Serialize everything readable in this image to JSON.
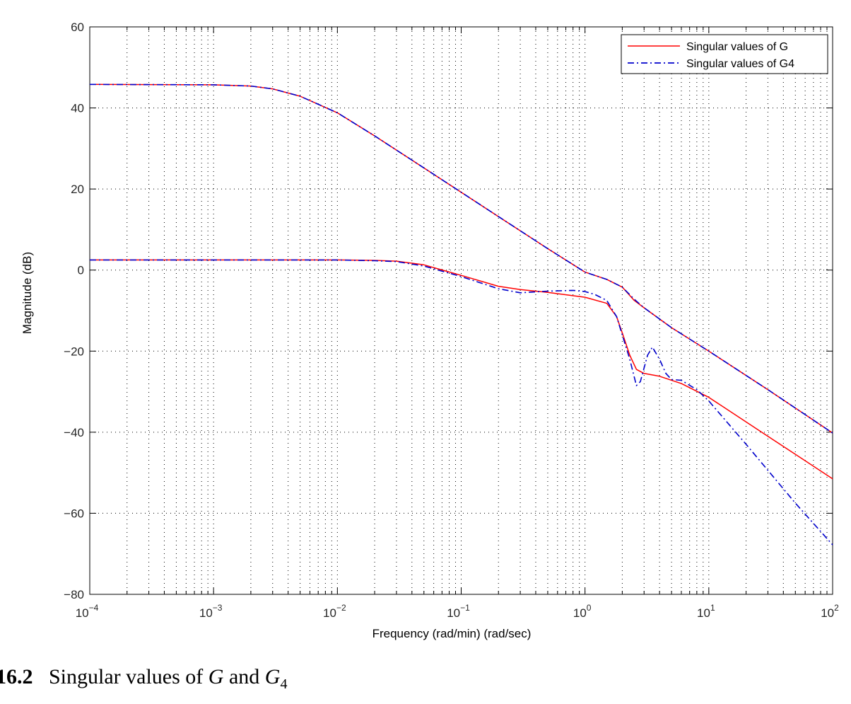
{
  "chart_data": {
    "type": "line",
    "xlabel": "Frequency (rad/min) (rad/sec)",
    "ylabel": "Magnitude (dB)",
    "xscale": "log",
    "xlim": [
      0.0001,
      100
    ],
    "ylim": [
      -80,
      60
    ],
    "grid": true,
    "legend_position": "top-right",
    "x_ticks": [
      {
        "v": 0.0001,
        "base": "10",
        "exp": "−4"
      },
      {
        "v": 0.001,
        "base": "10",
        "exp": "−3"
      },
      {
        "v": 0.01,
        "base": "10",
        "exp": "−2"
      },
      {
        "v": 0.1,
        "base": "10",
        "exp": "−1"
      },
      {
        "v": 1,
        "base": "10",
        "exp": "0"
      },
      {
        "v": 10,
        "base": "10",
        "exp": "1"
      },
      {
        "v": 100,
        "base": "10",
        "exp": "2"
      }
    ],
    "y_ticks": [
      {
        "v": 60,
        "label": "60"
      },
      {
        "v": 40,
        "label": "40"
      },
      {
        "v": 20,
        "label": "20"
      },
      {
        "v": 0,
        "label": "0"
      },
      {
        "v": -20,
        "label": "−20"
      },
      {
        "v": -40,
        "label": "−40"
      },
      {
        "v": -60,
        "label": "−60"
      },
      {
        "v": -80,
        "label": "−80"
      }
    ],
    "series": [
      {
        "name": "Singular values of G",
        "color": "#ff0000",
        "style": "solid",
        "lines": [
          {
            "x": [
              0.0001,
              0.001,
              0.002,
              0.003,
              0.005,
              0.01,
              0.02,
              0.05,
              0.1,
              0.2,
              0.5,
              1,
              1.5,
              2,
              2.5,
              3,
              5,
              10,
              30,
              100
            ],
            "y": [
              45.8,
              45.7,
              45.4,
              44.7,
              42.9,
              38.8,
              33.1,
              25.2,
              19.2,
              13.2,
              5.3,
              -0.5,
              -2.3,
              -4.2,
              -7.5,
              -9.3,
              -14.2,
              -20,
              -29.5,
              -40.2
            ]
          },
          {
            "x": [
              0.0001,
              0.001,
              0.01,
              0.02,
              0.03,
              0.05,
              0.1,
              0.2,
              0.3,
              0.5,
              1,
              1.5,
              1.8,
              2,
              2.3,
              2.6,
              3,
              4,
              6,
              10,
              30,
              100
            ],
            "y": [
              2.5,
              2.5,
              2.5,
              2.4,
              2.2,
              1.3,
              -1.3,
              -4.0,
              -4.8,
              -5.5,
              -6.7,
              -8.2,
              -11.5,
              -15.5,
              -21,
              -24.5,
              -25.5,
              -26.2,
              -28,
              -31.4,
              -41,
              -51.5
            ]
          }
        ]
      },
      {
        "name": "Singular values of G4",
        "color": "#0000cc",
        "style": "dashdot",
        "lines": [
          {
            "x": [
              0.0001,
              0.001,
              0.002,
              0.003,
              0.005,
              0.01,
              0.02,
              0.05,
              0.1,
              0.2,
              0.5,
              1,
              1.5,
              2,
              2.5,
              3,
              5,
              10,
              30,
              100
            ],
            "y": [
              45.8,
              45.7,
              45.4,
              44.7,
              42.9,
              38.8,
              33.1,
              25.2,
              19.2,
              13.2,
              5.3,
              -0.5,
              -2.3,
              -4.2,
              -7.2,
              -9.3,
              -14.2,
              -20,
              -29.5,
              -40.2
            ]
          },
          {
            "x": [
              0.0001,
              0.001,
              0.01,
              0.02,
              0.03,
              0.05,
              0.1,
              0.2,
              0.3,
              0.5,
              0.8,
              1,
              1.2,
              1.5,
              1.8,
              2,
              2.3,
              2.6,
              2.8,
              3.2,
              3.5,
              4,
              4.5,
              5,
              6,
              8,
              10,
              20,
              50,
              100
            ],
            "y": [
              2.5,
              2.5,
              2.5,
              2.3,
              2.1,
              1.0,
              -1.6,
              -4.6,
              -5.6,
              -5.2,
              -5.0,
              -5.3,
              -6.0,
              -7.5,
              -11.5,
              -16,
              -22,
              -28.5,
              -27.5,
              -21,
              -19,
              -22,
              -25.5,
              -27,
              -27.2,
              -29.5,
              -32.3,
              -43,
              -57.5,
              -67.8
            ]
          }
        ]
      }
    ]
  },
  "caption": {
    "figure_number": "16.2",
    "text": "Singular values of",
    "sym1": "G",
    "joiner": "and",
    "sym2": "G",
    "sym2_sub": "4"
  }
}
